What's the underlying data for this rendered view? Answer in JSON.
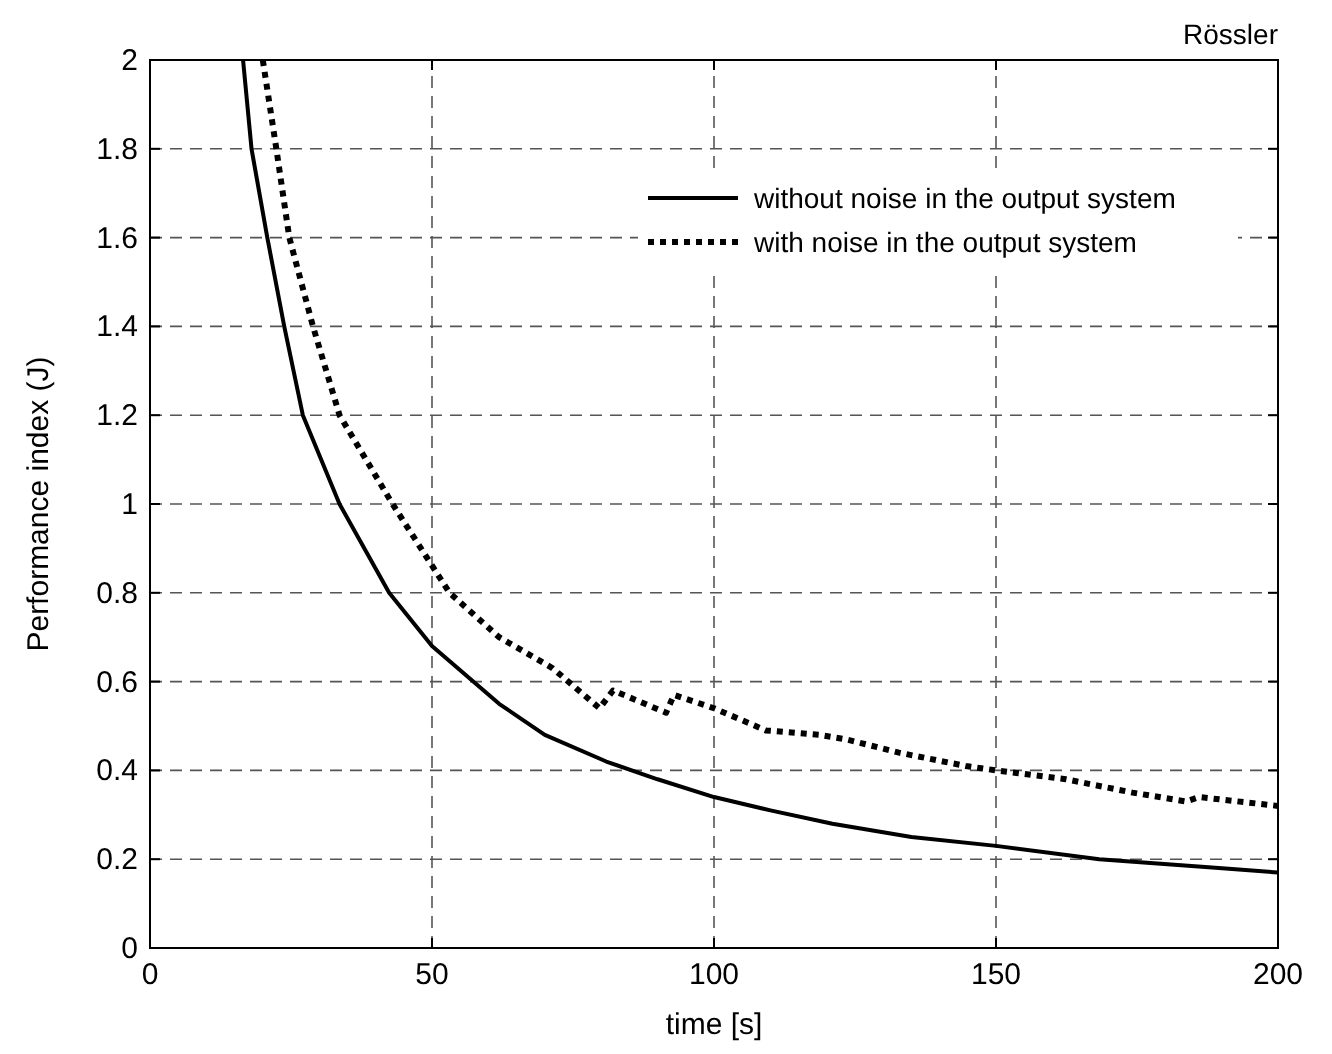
{
  "chart_data": {
    "type": "line",
    "title": "Rössler",
    "xlabel": "time [s]",
    "ylabel": "Performance index (J)",
    "xlim": [
      0,
      200
    ],
    "ylim": [
      0,
      2
    ],
    "xticks": [
      0,
      50,
      100,
      150,
      200
    ],
    "yticks": [
      0,
      0.2,
      0.4,
      0.6,
      0.8,
      1,
      1.2,
      1.4,
      1.6,
      1.8,
      2
    ],
    "grid": true,
    "legend": "top right",
    "series": [
      {
        "name": "without noise in the output system",
        "color": "#000000",
        "line_style": "solid",
        "x": [
          16.5,
          18,
          20.8,
          23.8,
          27.1,
          33.6,
          42.4,
          50,
          61.9,
          70,
          80.9,
          90,
          100,
          110,
          121,
          135,
          150,
          168.3,
          189.5,
          200
        ],
        "values": [
          2,
          1.8,
          1.6,
          1.4,
          1.2,
          1,
          0.8,
          0.68,
          0.55,
          0.48,
          0.42,
          0.38,
          0.34,
          0.31,
          0.28,
          0.25,
          0.23,
          0.2,
          0.18,
          0.17
        ]
      },
      {
        "name": "with noise in the output system",
        "color": "#000000",
        "line_style": "dotted",
        "x": [
          20,
          22.4,
          24.7,
          28.9,
          33.6,
          43,
          53.1,
          61.9,
          71.4,
          79.7,
          82.1,
          91.5,
          92.9,
          100,
          109.2,
          118.6,
          123.4,
          132.8,
          144.6,
          150,
          162.4,
          174.2,
          183.7,
          186,
          200
        ],
        "values": [
          2,
          1.8,
          1.6,
          1.4,
          1.2,
          1,
          0.8,
          0.7,
          0.63,
          0.54,
          0.58,
          0.53,
          0.57,
          0.54,
          0.49,
          0.48,
          0.47,
          0.44,
          0.41,
          0.4,
          0.38,
          0.35,
          0.33,
          0.34,
          0.32
        ]
      }
    ]
  }
}
